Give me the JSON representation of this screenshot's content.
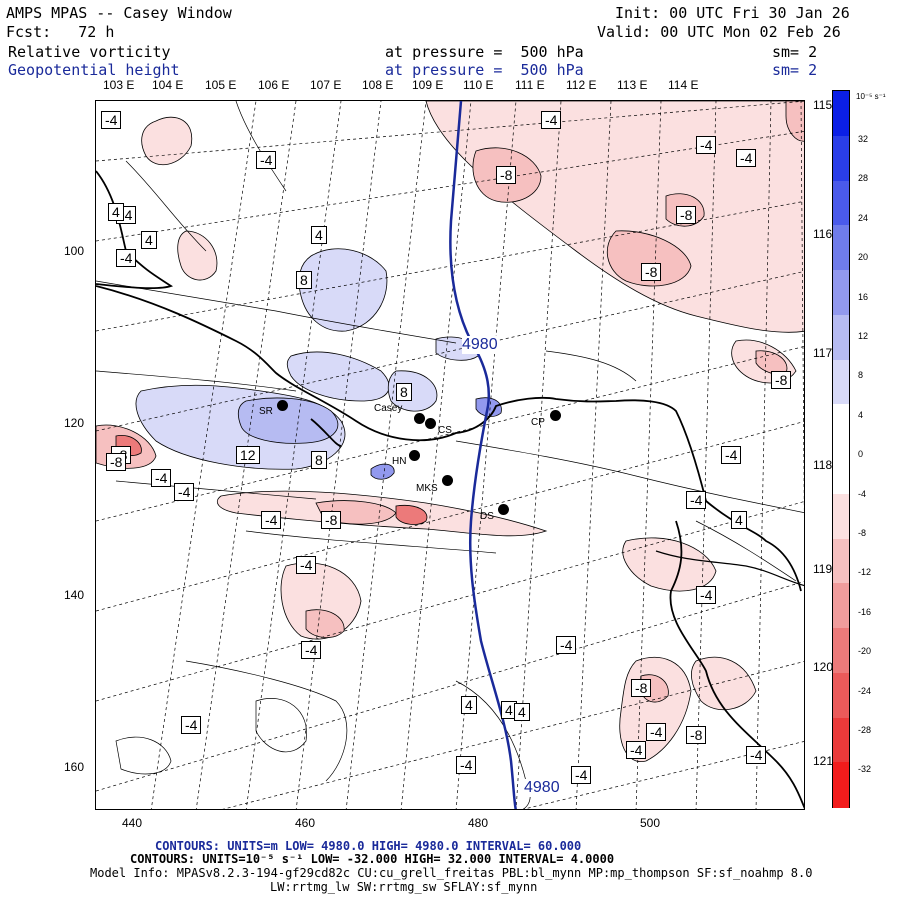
{
  "header": {
    "title": "AMPS MPAS -- Casey Window",
    "fcst": "Fcst:   72 h",
    "init": "Init: 00 UTC Fri 30 Jan 26",
    "valid": "Valid: 00 UTC Mon 02 Feb 26",
    "field1_name": "Relative vorticity",
    "field1_level": "at pressure =  500 hPa",
    "field1_sm": "sm= 2",
    "field2_name": "Geopotential height",
    "field2_level": "at pressure =  500 hPa",
    "field2_sm": "sm= 2"
  },
  "axes": {
    "top_lon_labels": [
      "103 E",
      "104 E",
      "105 E",
      "106 E",
      "107 E",
      "108 E",
      "109 E",
      "110 E",
      "111 E",
      "112 E",
      "113 E",
      "114 E"
    ],
    "x_ticks": [
      "440",
      "460",
      "480",
      "500"
    ],
    "y_ticks": [
      "100",
      "120",
      "140",
      "160"
    ],
    "right_lon_labels": [
      "115 E",
      "116 E",
      "117 E",
      "118 E",
      "119 E",
      "120 E",
      "121 E"
    ]
  },
  "colorbar": {
    "unit_label": "10⁻⁵ s⁻¹",
    "ticks": [
      "32",
      "28",
      "24",
      "20",
      "16",
      "12",
      "8",
      "4",
      "0",
      "-4",
      "-8",
      "-12",
      "-16",
      "-20",
      "-24",
      "-28",
      "-32"
    ],
    "colors": [
      "#0b1fe6",
      "#2a3ee8",
      "#4a5aea",
      "#6f7cea",
      "#9299ee",
      "#b6bbf2",
      "#d8daf8",
      "#ffffff",
      "#ffffff",
      "#fbe0e0",
      "#f6c0c0",
      "#f09c9c",
      "#ec7a7a",
      "#ea5a5a",
      "#ea3a3a",
      "#f21c1c"
    ]
  },
  "contour_labels": [
    "-4",
    "-4",
    "-4",
    "-4",
    "-4",
    "-4",
    "-8",
    "-8",
    "-8",
    "-8",
    "-8",
    "-4",
    "-4",
    "-4",
    "-4",
    "-8",
    "4",
    "4",
    "4",
    "8",
    "8",
    "8",
    "12",
    "-8",
    "-4",
    "-4",
    "-4",
    "-4",
    "4",
    "4",
    "-4",
    "-4",
    "-8",
    "-4",
    "-4",
    "-4",
    "4",
    "-4",
    "-8",
    "4",
    "-4",
    "-4"
  ],
  "geopotential_labels": [
    "4980",
    "4980"
  ],
  "stations": [
    "SR",
    "Casey",
    "CS",
    "CP",
    "HN",
    "MKS",
    "DS"
  ],
  "footer": {
    "line1": "CONTOURS:  UNITS=m  LOW=  4980.0        HIGH=  4980.0        INTERVAL=   60.000",
    "line2": "CONTOURS:  UNITS=10⁻⁵ s⁻¹  LOW= -32.000      HIGH=  32.000      INTERVAL=   4.0000",
    "line3": "Model Info: MPASv8.2.3-194-gf29cd82c CU:cu_grell_freitas PBL:bl_mynn MP:mp_thompson SF:sf_noahmp 8.0",
    "line4": "LW:rrtmg_lw SW:rrtmg_sw SFLAY:sf_mynn"
  }
}
